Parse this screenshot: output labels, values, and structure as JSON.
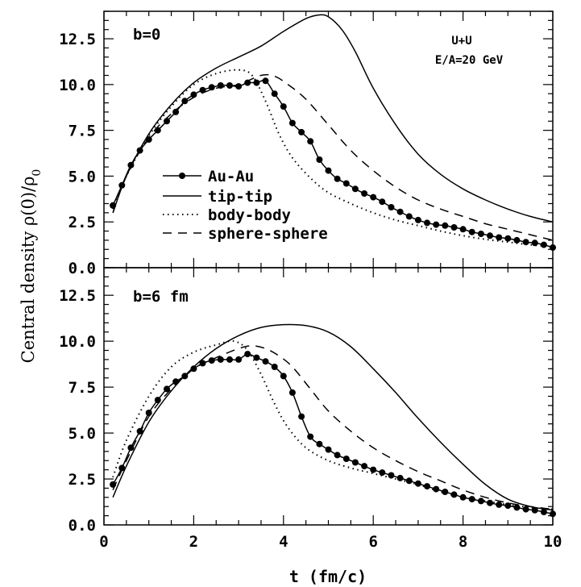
{
  "chart_data": {
    "type": "line",
    "xlabel": "t (fm/c)",
    "ylabel": "Central density ρ(0)/ρ",
    "ylabel_subscript": "0",
    "xlim": [
      0,
      10
    ],
    "ylim": [
      0,
      14
    ],
    "x_ticks": [
      "0",
      "2",
      "4",
      "6",
      "8",
      "10"
    ],
    "y_ticks": [
      "0.0",
      "2.5",
      "5.0",
      "7.5",
      "10.0",
      "12.5"
    ],
    "annotation_line1": "U+U",
    "annotation_line2": "E/A=20 GeV",
    "legend": [
      {
        "label": "Au-Au",
        "style": "solid-markers"
      },
      {
        "label": "tip-tip",
        "style": "solid"
      },
      {
        "label": "body-body",
        "style": "dotted"
      },
      {
        "label": "sphere-sphere",
        "style": "dashed"
      }
    ],
    "panels": [
      {
        "label": "b=0",
        "series": [
          {
            "name": "Au-Au",
            "style": "solid-markers",
            "x": [
              0.2,
              0.4,
              0.6,
              0.8,
              1.0,
              1.2,
              1.4,
              1.6,
              1.8,
              2.0,
              2.2,
              2.4,
              2.6,
              2.8,
              3.0,
              3.2,
              3.4,
              3.6,
              3.8,
              4.0,
              4.2,
              4.4,
              4.6,
              4.8,
              5.0,
              5.2,
              5.4,
              5.6,
              5.8,
              6.0,
              6.2,
              6.4,
              6.6,
              6.8,
              7.0,
              7.2,
              7.4,
              7.6,
              7.8,
              8.0,
              8.2,
              8.4,
              8.6,
              8.8,
              9.0,
              9.2,
              9.4,
              9.6,
              9.8,
              10.0
            ],
            "y": [
              3.4,
              4.5,
              5.6,
              6.4,
              7.0,
              7.5,
              8.0,
              8.5,
              9.1,
              9.45,
              9.7,
              9.85,
              9.95,
              9.95,
              9.9,
              10.1,
              10.1,
              10.2,
              9.5,
              8.8,
              7.9,
              7.4,
              6.9,
              5.9,
              5.3,
              4.85,
              4.6,
              4.3,
              4.05,
              3.85,
              3.6,
              3.3,
              3.05,
              2.8,
              2.6,
              2.45,
              2.35,
              2.3,
              2.2,
              2.1,
              1.95,
              1.85,
              1.75,
              1.65,
              1.6,
              1.5,
              1.4,
              1.35,
              1.25,
              1.1
            ]
          },
          {
            "name": "tip-tip",
            "style": "solid",
            "x": [
              0.2,
              0.5,
              1.0,
              1.5,
              2.0,
              2.5,
              3.0,
              3.5,
              4.0,
              4.5,
              4.8,
              5.0,
              5.3,
              5.6,
              6.0,
              6.5,
              7.0,
              7.5,
              8.0,
              8.5,
              9.0,
              9.5,
              10.0
            ],
            "y": [
              3.0,
              5.0,
              7.3,
              8.9,
              10.1,
              10.9,
              11.5,
              12.1,
              12.9,
              13.6,
              13.8,
              13.7,
              13.0,
              11.8,
              9.8,
              7.8,
              6.2,
              5.1,
              4.3,
              3.7,
              3.2,
              2.8,
              2.5
            ]
          },
          {
            "name": "body-body",
            "style": "dotted",
            "x": [
              0.2,
              0.5,
              1.0,
              1.5,
              2.0,
              2.5,
              3.0,
              3.3,
              3.6,
              3.9,
              4.2,
              4.6,
              5.0,
              5.5,
              6.0,
              6.5,
              7.0,
              7.5,
              8.0,
              8.5,
              9.0,
              9.5,
              10.0
            ],
            "y": [
              3.2,
              5.0,
              7.2,
              8.8,
              10.0,
              10.6,
              10.8,
              10.5,
              9.1,
              7.3,
              6.0,
              4.9,
              4.1,
              3.5,
              3.0,
              2.6,
              2.3,
              2.0,
              1.75,
              1.55,
              1.4,
              1.25,
              1.15
            ]
          },
          {
            "name": "sphere-sphere",
            "style": "dashed",
            "x": [
              0.2,
              0.5,
              1.0,
              1.5,
              2.0,
              2.5,
              3.0,
              3.5,
              3.8,
              4.1,
              4.5,
              5.0,
              5.5,
              6.0,
              6.5,
              7.0,
              7.5,
              8.0,
              8.5,
              9.0,
              9.5,
              10.0
            ],
            "y": [
              3.0,
              5.0,
              7.1,
              8.4,
              9.3,
              9.8,
              10.0,
              10.5,
              10.45,
              10.0,
              9.2,
              7.8,
              6.4,
              5.3,
              4.4,
              3.7,
              3.2,
              2.8,
              2.4,
              2.1,
              1.8,
              1.5
            ]
          }
        ]
      },
      {
        "label": "b=6 fm",
        "series": [
          {
            "name": "Au-Au",
            "style": "solid-markers",
            "x": [
              0.2,
              0.4,
              0.6,
              0.8,
              1.0,
              1.2,
              1.4,
              1.6,
              1.8,
              2.0,
              2.2,
              2.4,
              2.6,
              2.8,
              3.0,
              3.2,
              3.4,
              3.6,
              3.8,
              4.0,
              4.2,
              4.4,
              4.6,
              4.8,
              5.0,
              5.2,
              5.4,
              5.6,
              5.8,
              6.0,
              6.2,
              6.4,
              6.6,
              6.8,
              7.0,
              7.2,
              7.4,
              7.6,
              7.8,
              8.0,
              8.2,
              8.4,
              8.6,
              8.8,
              9.0,
              9.2,
              9.4,
              9.6,
              9.8,
              10.0
            ],
            "y": [
              2.2,
              3.1,
              4.2,
              5.1,
              6.1,
              6.8,
              7.4,
              7.8,
              8.1,
              8.5,
              8.8,
              8.95,
              9.0,
              9.0,
              9.0,
              9.3,
              9.1,
              8.9,
              8.6,
              8.1,
              7.2,
              5.9,
              4.8,
              4.4,
              4.1,
              3.8,
              3.6,
              3.4,
              3.2,
              3.0,
              2.85,
              2.7,
              2.55,
              2.4,
              2.25,
              2.1,
              1.95,
              1.8,
              1.65,
              1.5,
              1.4,
              1.3,
              1.2,
              1.1,
              1.05,
              0.95,
              0.85,
              0.8,
              0.7,
              0.6
            ]
          },
          {
            "name": "tip-tip",
            "style": "solid",
            "x": [
              0.2,
              0.5,
              1.0,
              1.5,
              2.0,
              2.5,
              3.0,
              3.5,
              4.0,
              4.5,
              5.0,
              5.5,
              6.0,
              6.5,
              7.0,
              7.5,
              8.0,
              8.5,
              9.0,
              9.5,
              10.0
            ],
            "y": [
              1.5,
              3.2,
              5.6,
              7.3,
              8.6,
              9.6,
              10.3,
              10.75,
              10.9,
              10.85,
              10.5,
              9.7,
              8.5,
              7.2,
              5.8,
              4.5,
              3.3,
              2.2,
              1.4,
              1.0,
              0.8
            ]
          },
          {
            "name": "body-body",
            "style": "dotted",
            "x": [
              0.2,
              0.5,
              1.0,
              1.5,
              2.0,
              2.5,
              2.9,
              3.2,
              3.5,
              3.8,
              4.1,
              4.5,
              5.0,
              5.5,
              6.0,
              6.5,
              7.0,
              7.5,
              8.0,
              8.5,
              9.0,
              9.5,
              10.0
            ],
            "y": [
              2.6,
              4.6,
              7.0,
              8.6,
              9.4,
              9.8,
              10.0,
              9.5,
              8.2,
              6.6,
              5.3,
              4.2,
              3.5,
              3.1,
              2.8,
              2.5,
              2.2,
              1.8,
              1.5,
              1.3,
              1.1,
              0.95,
              0.85
            ]
          },
          {
            "name": "sphere-sphere",
            "style": "dashed",
            "x": [
              0.2,
              0.5,
              1.0,
              1.5,
              2.0,
              2.5,
              3.0,
              3.3,
              3.6,
              3.9,
              4.2,
              4.6,
              5.0,
              5.5,
              6.0,
              6.5,
              7.0,
              7.5,
              8.0,
              8.5,
              9.0,
              9.5,
              10.0
            ],
            "y": [
              1.9,
              3.5,
              5.9,
              7.4,
              8.5,
              9.1,
              9.6,
              9.75,
              9.6,
              9.2,
              8.6,
              7.4,
              6.2,
              5.1,
              4.2,
              3.5,
              2.9,
              2.4,
              1.9,
              1.5,
              1.2,
              1.0,
              0.85
            ]
          }
        ]
      }
    ]
  }
}
